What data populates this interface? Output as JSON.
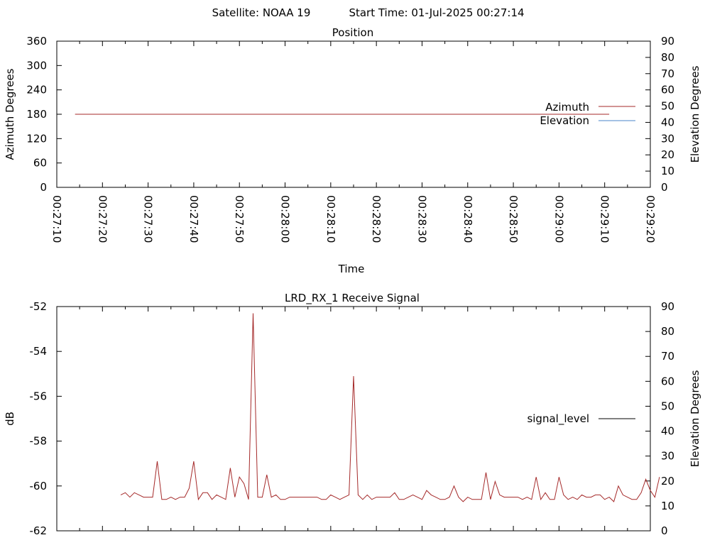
{
  "header": {
    "satellite_label": "Satellite: NOAA 19",
    "start_time_label": "Start Time: 01-Jul-2025 00:27:14"
  },
  "chart_data": [
    {
      "type": "line",
      "title": "Position",
      "xlabel": "Time",
      "ylabel": "Azimuth Degrees",
      "y2label": "Elevation Degrees",
      "xlim": [
        "00:27:10",
        "00:29:20"
      ],
      "x_ticks": [
        "00:27:10",
        "00:27:20",
        "00:27:30",
        "00:27:40",
        "00:27:50",
        "00:28:00",
        "00:28:10",
        "00:28:20",
        "00:28:30",
        "00:28:40",
        "00:28:50",
        "00:29:00",
        "00:29:10",
        "00:29:20"
      ],
      "ylim": [
        0,
        360
      ],
      "y_ticks": [
        "0",
        "60",
        "120",
        "180",
        "240",
        "300",
        "360"
      ],
      "y2lim": [
        0,
        90
      ],
      "y2_ticks": [
        "0",
        "10",
        "20",
        "30",
        "40",
        "50",
        "60",
        "70",
        "80",
        "90"
      ],
      "legend_position": "right",
      "series": [
        {
          "name": "Azimuth",
          "color": "#a52a2a",
          "axis": "y1",
          "x": [
            "00:27:14",
            "00:29:11"
          ],
          "values": [
            180,
            180
          ]
        },
        {
          "name": "Elevation",
          "color": "#4a86c8",
          "axis": "y2",
          "x": [],
          "values": []
        }
      ]
    },
    {
      "type": "line",
      "title": "LRD_RX_1 Receive Signal",
      "xlabel": "",
      "ylabel": "dB",
      "y2label": "Elevation Degrees",
      "xlim": [
        "00:27:10",
        "00:29:20"
      ],
      "ylim": [
        -62,
        -52
      ],
      "y_ticks": [
        "-52",
        "-54",
        "-56",
        "-58",
        "-60",
        "-62"
      ],
      "y2lim": [
        0,
        90
      ],
      "y2_ticks": [
        "0",
        "10",
        "20",
        "30",
        "40",
        "50",
        "60",
        "70",
        "80",
        "90"
      ],
      "legend_position": "right",
      "series": [
        {
          "name": "signal_level",
          "color": "#a52a2a",
          "legend_color": "#000000",
          "axis": "y1",
          "x_start_seconds": 14,
          "x_step_seconds": 1,
          "values": [
            -60.4,
            -60.3,
            -60.5,
            -60.3,
            -60.4,
            -60.5,
            -60.5,
            -60.5,
            -58.9,
            -60.6,
            -60.6,
            -60.5,
            -60.6,
            -60.5,
            -60.5,
            -60.1,
            -58.9,
            -60.6,
            -60.3,
            -60.3,
            -60.6,
            -60.4,
            -60.5,
            -60.6,
            -59.2,
            -60.5,
            -59.6,
            -59.9,
            -60.6,
            -52.3,
            -60.5,
            -60.5,
            -59.5,
            -60.5,
            -60.4,
            -60.6,
            -60.6,
            -60.5,
            -60.5,
            -60.5,
            -60.5,
            -60.5,
            -60.5,
            -60.5,
            -60.6,
            -60.6,
            -60.4,
            -60.5,
            -60.6,
            -60.5,
            -60.4,
            -55.1,
            -60.4,
            -60.6,
            -60.4,
            -60.6,
            -60.5,
            -60.5,
            -60.5,
            -60.5,
            -60.3,
            -60.6,
            -60.6,
            -60.5,
            -60.4,
            -60.5,
            -60.6,
            -60.2,
            -60.4,
            -60.5,
            -60.6,
            -60.6,
            -60.5,
            -60.0,
            -60.5,
            -60.7,
            -60.5,
            -60.6,
            -60.6,
            -60.6,
            -59.4,
            -60.6,
            -59.8,
            -60.4,
            -60.5,
            -60.5,
            -60.5,
            -60.5,
            -60.6,
            -60.5,
            -60.6,
            -59.6,
            -60.6,
            -60.3,
            -60.6,
            -60.6,
            -59.6,
            -60.4,
            -60.6,
            -60.5,
            -60.6,
            -60.4,
            -60.5,
            -60.5,
            -60.4,
            -60.4,
            -60.6,
            -60.5,
            -60.7,
            -60.0,
            -60.4,
            -60.5,
            -60.6,
            -60.6,
            -60.3,
            -59.7,
            -60.2,
            -60.5,
            -59.6
          ]
        }
      ]
    }
  ]
}
